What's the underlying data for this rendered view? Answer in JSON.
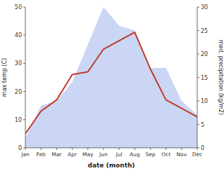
{
  "chart_data": {
    "type": "line",
    "xlabel": "date (month)",
    "ylabel": "max temp (C)",
    "y2label": "med. precipitation (kg/m2)",
    "categories": [
      "Jan",
      "Feb",
      "Mar",
      "Apr",
      "May",
      "Jun",
      "Jul",
      "Aug",
      "Sep",
      "Oct",
      "Nov",
      "Dec"
    ],
    "ylim": [
      0,
      50
    ],
    "yticks": [
      0,
      10,
      20,
      30,
      40,
      50
    ],
    "y2lim": [
      0,
      30
    ],
    "y2ticks": [
      0,
      5,
      10,
      15,
      20,
      25,
      30
    ],
    "grid": false,
    "series": [
      {
        "type": "area",
        "axis": "y2",
        "color": "#b8c8f0",
        "values": [
          2,
          9,
          10,
          14,
          22,
          30,
          26,
          25,
          17,
          17,
          10,
          7
        ]
      },
      {
        "type": "line",
        "color": "#c0392b",
        "values": [
          5,
          13,
          17,
          26,
          27,
          35,
          38,
          41,
          28,
          17,
          14,
          11
        ]
      }
    ]
  }
}
